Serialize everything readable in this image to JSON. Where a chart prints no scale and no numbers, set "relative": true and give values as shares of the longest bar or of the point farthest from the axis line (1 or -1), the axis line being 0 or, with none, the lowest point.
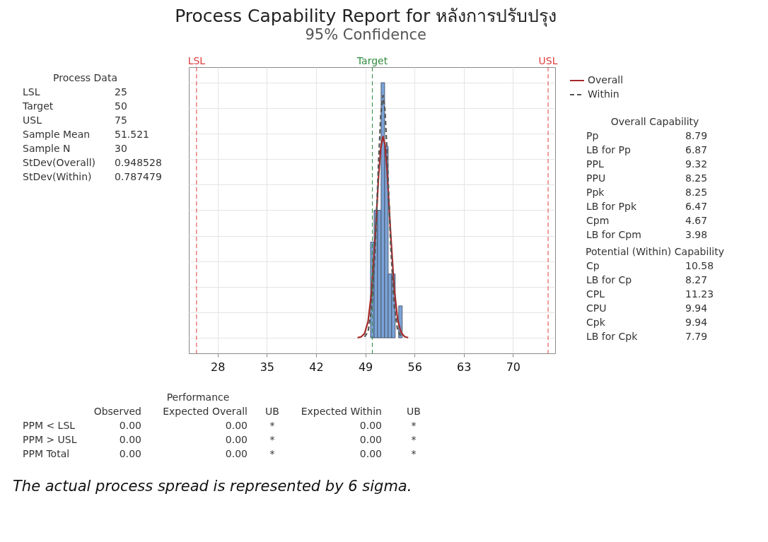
{
  "chart_data": [
    {
      "type": "histogram",
      "title": "Process Capability Report for หลังการปรับปรุง",
      "subtitle": "95% Confidence",
      "relative": true,
      "bins": [
        49.75,
        50.25,
        50.75,
        51.25,
        51.75,
        52.25,
        52.75,
        53.25,
        53.75,
        54.25
      ],
      "values": [
        0.375,
        0.5,
        0.5,
        1,
        0.75,
        0.25,
        0.25,
        0,
        0.125
      ],
      "color": "#7ba3d8",
      "series": [
        {
          "name": "Overall",
          "type": "line",
          "color": "#a52a2a",
          "line_style": "solid",
          "x": [
            47.9,
            48.4,
            48.9,
            49.4,
            49.9,
            50.4,
            50.9,
            51.2,
            51.52,
            51.8,
            52.1,
            52.6,
            53.1,
            53.6,
            54.1,
            54.6,
            55.1
          ],
          "values": [
            0.0005,
            0.0035,
            0.017,
            0.065,
            0.183,
            0.393,
            0.637,
            0.745,
            0.789,
            0.756,
            0.655,
            0.413,
            0.197,
            0.071,
            0.02,
            0.004,
            0.0006
          ]
        },
        {
          "name": "Within",
          "type": "line",
          "color": "#555555",
          "line_style": "dashed",
          "x": [
            48.9,
            49.4,
            49.9,
            50.4,
            50.9,
            51.2,
            51.52,
            51.8,
            52.1,
            52.6,
            53.1,
            53.6,
            54.1
          ],
          "values": [
            0.004,
            0.025,
            0.114,
            0.345,
            0.696,
            0.874,
            0.95,
            0.892,
            0.725,
            0.372,
            0.127,
            0.029,
            0.0045
          ]
        }
      ],
      "xlim": [
        23.9,
        76.0
      ],
      "xticks": [
        28,
        35,
        42,
        49,
        56,
        63,
        70
      ],
      "grid": true,
      "legend": "top right",
      "ref_lines": [
        {
          "axis": "x",
          "value": 25,
          "label": "LSL",
          "color": "#e03c3c",
          "line_style": "dashed"
        },
        {
          "axis": "x",
          "value": 50,
          "label": "Target",
          "color": "#2e8b3e",
          "line_style": "dashed"
        },
        {
          "axis": "x",
          "value": 75,
          "label": "USL",
          "color": "#e03c3c",
          "line_style": "dashed"
        }
      ],
      "annotations": [
        "The actual process spread is represented by 6 sigma."
      ]
    },
    {
      "type": "other",
      "data_labels": true,
      "title": "Process Data",
      "categories": [
        "LSL",
        "Target",
        "USL",
        "Sample Mean",
        "Sample N",
        "StDev(Overall)",
        "StDev(Within)"
      ],
      "values": [
        25,
        50,
        75,
        51.521,
        30,
        0.948528,
        0.787479
      ]
    },
    {
      "type": "other",
      "data_labels": true,
      "title": "Overall Capability",
      "categories": [
        "Pp",
        "LB for Pp",
        "PPL",
        "PPU",
        "Ppk",
        "LB for Ppk",
        "Cpm",
        "LB for Cpm"
      ],
      "values": [
        8.79,
        6.87,
        9.32,
        8.25,
        8.25,
        6.47,
        4.67,
        3.98
      ]
    },
    {
      "type": "other",
      "data_labels": true,
      "title": "Potential (Within) Capability",
      "categories": [
        "Cp",
        "LB for Cp",
        "CPL",
        "CPU",
        "Cpk",
        "LB for Cpk"
      ],
      "values": [
        10.58,
        8.27,
        11.23,
        9.94,
        9.94,
        7.79
      ]
    },
    {
      "type": "other",
      "title": "Performance",
      "categories": [
        "PPM < LSL",
        "PPM > USL",
        "PPM Total"
      ],
      "series": [
        {
          "name": "Observed",
          "values": [
            0,
            0,
            0
          ],
          "value_labels": [
            "0.00",
            "0.00",
            "0.00"
          ]
        },
        {
          "name": "Expected Overall",
          "values": [
            0,
            0,
            0
          ],
          "value_labels": [
            "0.00",
            "0.00",
            "0.00"
          ]
        },
        {
          "name": "UB",
          "values": [
            null,
            null,
            null
          ],
          "value_labels": [
            "*",
            "*",
            "*"
          ]
        },
        {
          "name": "Expected Within",
          "values": [
            0,
            0,
            0
          ],
          "value_labels": [
            "0.00",
            "0.00",
            "0.00"
          ]
        },
        {
          "name": "UB",
          "values": [
            null,
            null,
            null
          ],
          "value_labels": [
            "*",
            "*",
            "*"
          ]
        }
      ]
    }
  ]
}
